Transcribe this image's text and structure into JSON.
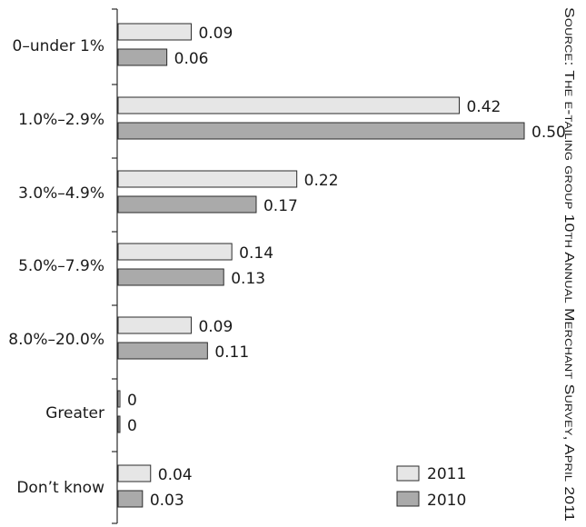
{
  "chart_data": {
    "type": "bar",
    "orientation": "horizontal",
    "categories": [
      "0–under 1%",
      "1.0%–2.9%",
      "3.0%–4.9%",
      "5.0%–7.9%",
      "8.0%–20.0%",
      "Greater",
      "Don’t know"
    ],
    "series": [
      {
        "name": "2011",
        "values": [
          0.09,
          0.42,
          0.22,
          0.14,
          0.09,
          0,
          0.04
        ],
        "value_labels": [
          "0.09",
          "0.42",
          "0.22",
          "0.14",
          "0.09",
          "0",
          "0.04"
        ],
        "color": "#e6e6e6"
      },
      {
        "name": "2010",
        "values": [
          0.06,
          0.5,
          0.17,
          0.13,
          0.11,
          0,
          0.03
        ],
        "value_labels": [
          "0.06",
          "0.50",
          "0.17",
          "0.13",
          "0.11",
          "0",
          "0.03"
        ],
        "color": "#aaaaaa"
      }
    ],
    "xlim": [
      0,
      0.5
    ],
    "legend_position": "bottom-right",
    "grid": false
  },
  "source_note": "Source: The e-tailing group 10th Annual Merchant Survey, April 2011"
}
